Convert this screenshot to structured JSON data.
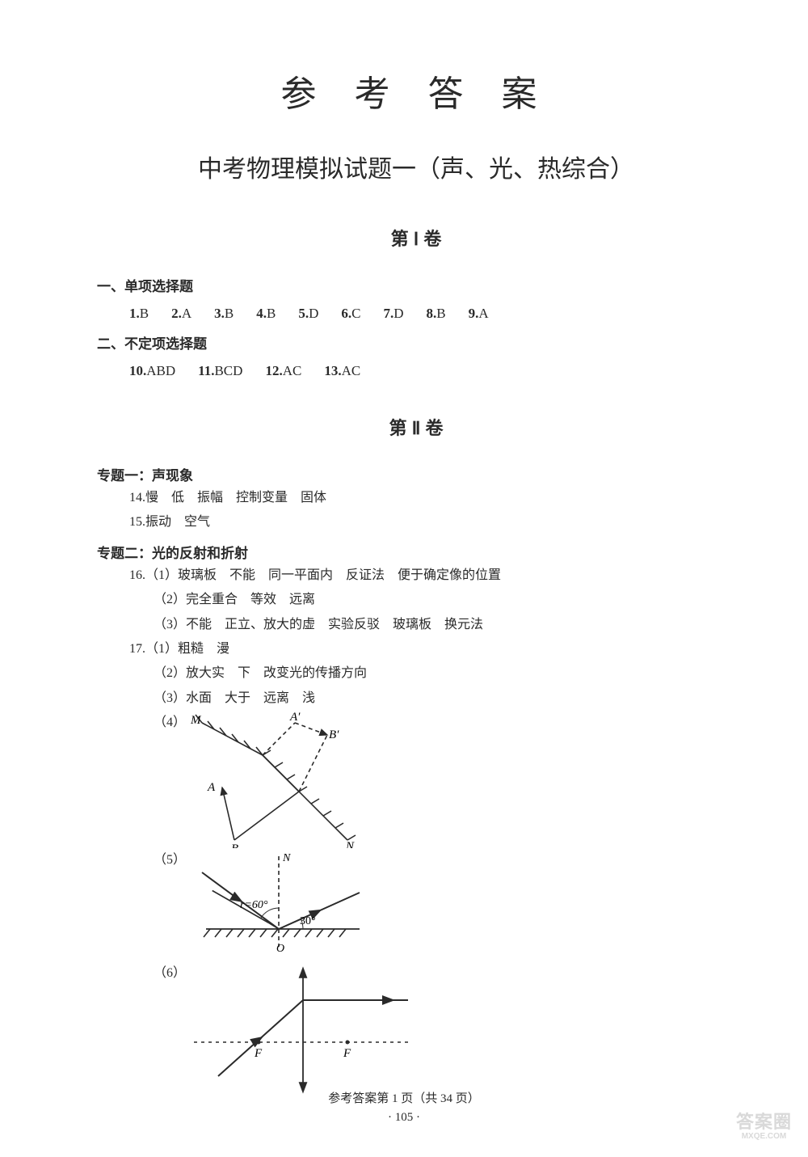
{
  "title_main": "参 考 答 案",
  "title_sub": "中考物理模拟试题一（声、光、热综合）",
  "vol1": "第 Ⅰ 卷",
  "sec1": "一、单项选择题",
  "single_choice": [
    {
      "n": "1",
      "a": "B"
    },
    {
      "n": "2",
      "a": "A"
    },
    {
      "n": "3",
      "a": "B"
    },
    {
      "n": "4",
      "a": "B"
    },
    {
      "n": "5",
      "a": "D"
    },
    {
      "n": "6",
      "a": "C"
    },
    {
      "n": "7",
      "a": "D"
    },
    {
      "n": "8",
      "a": "B"
    },
    {
      "n": "9",
      "a": "A"
    }
  ],
  "sec2": "二、不定项选择题",
  "multi_choice": [
    {
      "n": "10",
      "a": "ABD"
    },
    {
      "n": "11",
      "a": "BCD"
    },
    {
      "n": "12",
      "a": "AC"
    },
    {
      "n": "13",
      "a": "AC"
    }
  ],
  "vol2": "第 Ⅱ 卷",
  "topic1": "专题一：声现象",
  "line14": "14.慢　低　振幅　控制变量　固体",
  "line15": "15.振动　空气",
  "topic2": "专题二：光的反射和折射",
  "line16_1": "16.（1）玻璃板　不能　同一平面内　反证法　便于确定像的位置",
  "line16_2": "（2）完全重合　等效　远离",
  "line16_3": "（3）不能　正立、放大的虚　实验反驳　玻璃板　换元法",
  "line17_1": "17.（1）粗糙　漫",
  "line17_2": "（2）放大实　下　改变光的传播方向",
  "line17_3": "（3）水面　大于　远离　浅",
  "p4": "（4）",
  "p5": "（5）",
  "p6": "（6）",
  "diagram4": {
    "labels": {
      "M": "M",
      "Aprime": "A′",
      "Bprime": "B′",
      "A": "A",
      "B": "B",
      "N": "N"
    },
    "stroke": "#2a2a2a",
    "font": "italic 16px serif"
  },
  "diagram5": {
    "labels": {
      "N": "N",
      "r": "r=60°",
      "ang": "30°",
      "O": "O"
    },
    "stroke": "#2a2a2a"
  },
  "diagram6": {
    "labels": {
      "F": "F"
    },
    "stroke": "#2a2a2a"
  },
  "footer_line": "参考答案第 1 页（共 34 页）",
  "page_number": "· 105 ·",
  "watermark_top": "答案圈",
  "watermark_bottom": "MXQE.COM"
}
